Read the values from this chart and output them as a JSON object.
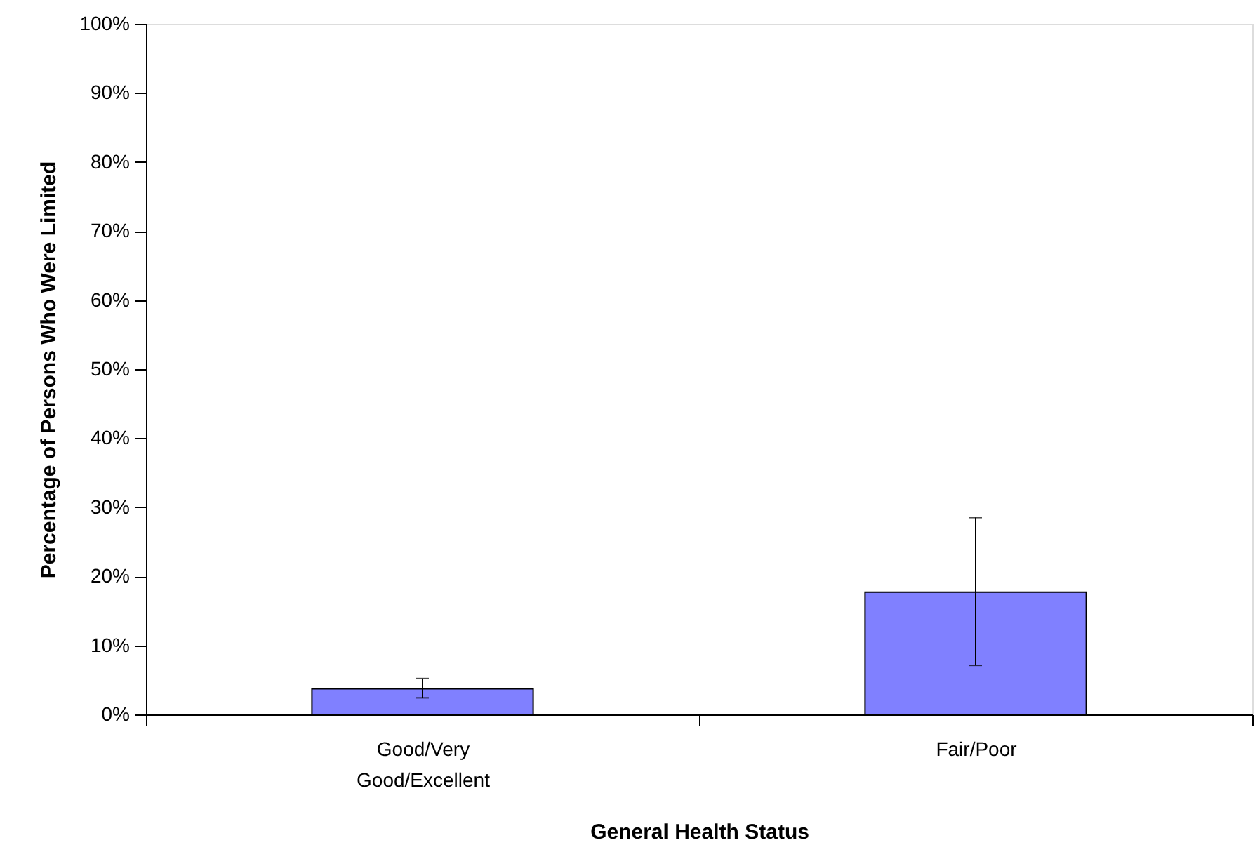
{
  "chart_data": {
    "type": "bar",
    "xlabel": "General Health Status",
    "ylabel": "Percentage of Persons Who Were Limited",
    "categories": [
      "Good/Very Good/Excellent",
      "Fair/Poor"
    ],
    "values": [
      3.7,
      17.7
    ],
    "errors": [
      [
        2.4,
        5.2
      ],
      [
        7.1,
        28.5
      ]
    ],
    "color": "#8080ff",
    "ylim": [
      0,
      100
    ],
    "yticks": [
      {
        "value": 0,
        "label": "0%"
      },
      {
        "value": 10,
        "label": "10%"
      },
      {
        "value": 20,
        "label": "20%"
      },
      {
        "value": 30,
        "label": "30%"
      },
      {
        "value": 40,
        "label": "40%"
      },
      {
        "value": 50,
        "label": "50%"
      },
      {
        "value": 60,
        "label": "60%"
      },
      {
        "value": 70,
        "label": "70%"
      },
      {
        "value": 80,
        "label": "80%"
      },
      {
        "value": 90,
        "label": "90%"
      },
      {
        "value": 100,
        "label": "100%"
      }
    ],
    "grid": false
  }
}
